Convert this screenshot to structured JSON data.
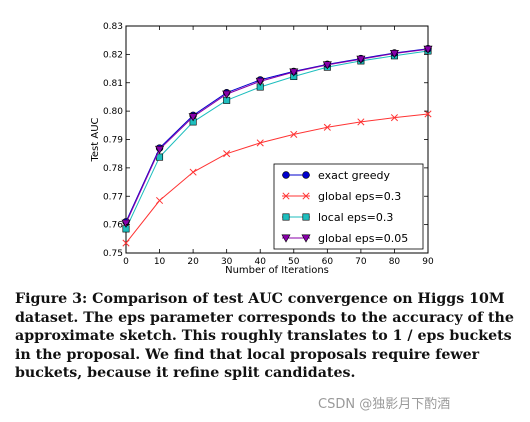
{
  "chart_data": {
    "type": "line",
    "xlabel": "Number of Iterations",
    "ylabel": "Test AUC",
    "xlim": [
      0,
      90
    ],
    "ylim": [
      0.75,
      0.83
    ],
    "xticks": [
      "0",
      "10",
      "20",
      "30",
      "40",
      "50",
      "60",
      "70",
      "80",
      "90"
    ],
    "yticks": [
      "0.75",
      "0.76",
      "0.77",
      "0.78",
      "0.79",
      "0.80",
      "0.81",
      "0.82",
      "0.83"
    ],
    "grid": false,
    "legend_position": "bottom-right",
    "series": [
      {
        "name": "exact greedy",
        "color": "#0000cc",
        "marker": "circle",
        "x": [
          0,
          10,
          20,
          30,
          40,
          50,
          60,
          70,
          80,
          90
        ],
        "y": [
          0.761,
          0.787,
          0.7985,
          0.8065,
          0.811,
          0.814,
          0.8165,
          0.8185,
          0.8205,
          0.822
        ]
      },
      {
        "name": "global eps=0.3",
        "color": "#ff3333",
        "marker": "x",
        "x": [
          0,
          10,
          20,
          30,
          40,
          50,
          60,
          70,
          80,
          90
        ],
        "y": [
          0.7535,
          0.7685,
          0.7785,
          0.785,
          0.7888,
          0.7918,
          0.7943,
          0.7962,
          0.7977,
          0.799
        ]
      },
      {
        "name": "local eps=0.3",
        "color": "#1ebebe",
        "marker": "square",
        "x": [
          0,
          10,
          20,
          30,
          40,
          50,
          60,
          70,
          80,
          90
        ],
        "y": [
          0.7585,
          0.7838,
          0.7962,
          0.8038,
          0.8085,
          0.8122,
          0.8155,
          0.8177,
          0.8195,
          0.8212
        ]
      },
      {
        "name": "global eps=0.05",
        "color": "#8800aa",
        "marker": "triangle-down",
        "x": [
          0,
          10,
          20,
          30,
          40,
          50,
          60,
          70,
          80,
          90
        ],
        "y": [
          0.7605,
          0.7865,
          0.798,
          0.806,
          0.8105,
          0.8138,
          0.8163,
          0.8183,
          0.8203,
          0.8218
        ]
      }
    ]
  },
  "caption": "Figure 3: Comparison of test AUC convergence on Higgs 10M dataset. The eps parameter corresponds to the accuracy of the approximate sketch. This roughly translates to 1 / eps buckets in the proposal. We find that local proposals require fewer buckets, because it refine split candidates.",
  "watermark": "CSDN @独影月下酌酒"
}
